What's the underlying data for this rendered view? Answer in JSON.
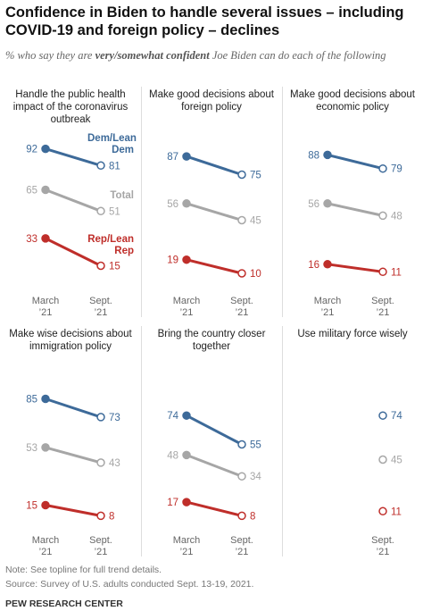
{
  "title": "Confidence in Biden to handle several issues – including COVID-19 and foreign policy – declines",
  "subtitle": [
    "% who say they are ",
    "very/somewhat confident",
    " Joe Biden can do each of the following"
  ],
  "note": "Note: See topline for full trend details.",
  "source": "Source: Survey of U.S. adults conducted Sept. 13-19, 2021.",
  "credit": "PEW RESEARCH CENTER",
  "chart_data": [
    {
      "type": "line",
      "title": "Handle the public health impact of the coronavirus outbreak",
      "categories": [
        "March ’21",
        "Sept. ’21"
      ],
      "ylim": [
        0,
        100
      ],
      "series": [
        {
          "name": "Dem/Lean Dem",
          "color": "#3d6a99",
          "values": [
            92,
            81
          ]
        },
        {
          "name": "Total",
          "color": "#a6a6a6",
          "values": [
            65,
            51
          ]
        },
        {
          "name": "Rep/Lean Rep",
          "color": "#bf2e2a",
          "values": [
            33,
            15
          ]
        }
      ]
    },
    {
      "type": "line",
      "title": "Make good decisions about foreign policy",
      "categories": [
        "March ’21",
        "Sept. ’21"
      ],
      "ylim": [
        0,
        100
      ],
      "series": [
        {
          "color": "#3d6a99",
          "values": [
            87,
            75
          ]
        },
        {
          "color": "#a6a6a6",
          "values": [
            56,
            45
          ]
        },
        {
          "color": "#bf2e2a",
          "values": [
            19,
            10
          ]
        }
      ]
    },
    {
      "type": "line",
      "title": "Make good decisions about economic policy",
      "categories": [
        "March ’21",
        "Sept. ’21"
      ],
      "ylim": [
        0,
        100
      ],
      "series": [
        {
          "color": "#3d6a99",
          "values": [
            88,
            79
          ]
        },
        {
          "color": "#a6a6a6",
          "values": [
            56,
            48
          ]
        },
        {
          "color": "#bf2e2a",
          "values": [
            16,
            11
          ]
        }
      ]
    },
    {
      "type": "line",
      "title": "Make wise decisions about immigration policy",
      "categories": [
        "March ’21",
        "Sept. ’21"
      ],
      "ylim": [
        0,
        100
      ],
      "series": [
        {
          "color": "#3d6a99",
          "values": [
            85,
            73
          ]
        },
        {
          "color": "#a6a6a6",
          "values": [
            53,
            43
          ]
        },
        {
          "color": "#bf2e2a",
          "values": [
            15,
            8
          ]
        }
      ]
    },
    {
      "type": "line",
      "title": "Bring the country closer together",
      "categories": [
        "March ’21",
        "Sept. ’21"
      ],
      "ylim": [
        0,
        100
      ],
      "series": [
        {
          "color": "#3d6a99",
          "values": [
            74,
            55
          ]
        },
        {
          "color": "#a6a6a6",
          "values": [
            48,
            34
          ]
        },
        {
          "color": "#bf2e2a",
          "values": [
            17,
            8
          ]
        }
      ]
    },
    {
      "type": "line",
      "title": "Use military force wisely",
      "categories": [
        null,
        "Sept. ’21"
      ],
      "ylim": [
        0,
        100
      ],
      "series": [
        {
          "color": "#3d6a99",
          "values": [
            null,
            74
          ]
        },
        {
          "color": "#a6a6a6",
          "values": [
            null,
            45
          ]
        },
        {
          "color": "#bf2e2a",
          "values": [
            null,
            11
          ]
        }
      ]
    }
  ]
}
